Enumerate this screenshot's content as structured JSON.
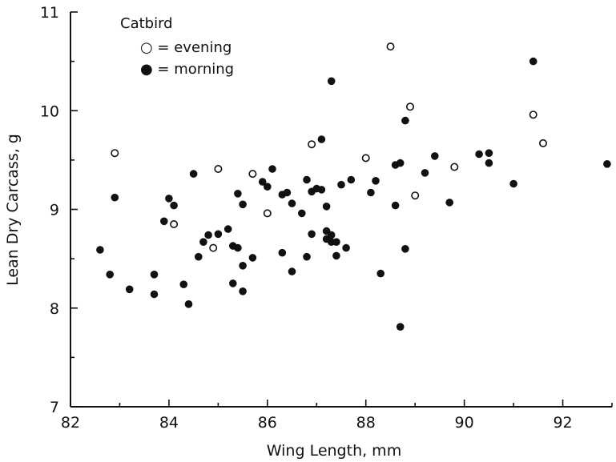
{
  "chart_data": {
    "type": "scatter",
    "title": "",
    "legend_title": "Catbird",
    "xlabel": "Wing Length, mm",
    "ylabel": "Lean Dry Carcass, g",
    "xlim": [
      82,
      93
    ],
    "ylim": [
      7,
      11
    ],
    "xticks": [
      82,
      84,
      86,
      88,
      90,
      92
    ],
    "yticks": [
      7,
      8,
      9,
      10,
      11
    ],
    "legend_placement": "top-left",
    "series": [
      {
        "name": "evening",
        "legend_label": "○ = evening",
        "marker": "open-circle",
        "points": [
          [
            82.9,
            9.57
          ],
          [
            84.1,
            8.85
          ],
          [
            84.9,
            8.61
          ],
          [
            85.0,
            9.41
          ],
          [
            85.7,
            9.36
          ],
          [
            86.0,
            8.96
          ],
          [
            86.9,
            9.66
          ],
          [
            88.0,
            9.52
          ],
          [
            88.5,
            10.65
          ],
          [
            88.9,
            10.04
          ],
          [
            89.0,
            9.14
          ],
          [
            89.8,
            9.43
          ],
          [
            91.4,
            9.96
          ],
          [
            91.6,
            9.67
          ]
        ]
      },
      {
        "name": "morning",
        "legend_label": "● = morning",
        "marker": "filled-circle",
        "points": [
          [
            82.6,
            8.59
          ],
          [
            82.8,
            8.34
          ],
          [
            82.9,
            9.12
          ],
          [
            83.2,
            8.19
          ],
          [
            83.7,
            8.14
          ],
          [
            83.7,
            8.34
          ],
          [
            83.9,
            8.88
          ],
          [
            84.0,
            9.11
          ],
          [
            84.1,
            9.04
          ],
          [
            84.3,
            8.24
          ],
          [
            84.4,
            8.04
          ],
          [
            84.5,
            9.36
          ],
          [
            84.6,
            8.52
          ],
          [
            84.7,
            8.67
          ],
          [
            84.8,
            8.74
          ],
          [
            85.0,
            8.75
          ],
          [
            85.2,
            8.8
          ],
          [
            85.3,
            8.25
          ],
          [
            85.3,
            8.63
          ],
          [
            85.4,
            8.61
          ],
          [
            85.4,
            9.16
          ],
          [
            85.5,
            9.05
          ],
          [
            85.5,
            8.43
          ],
          [
            85.5,
            8.17
          ],
          [
            85.7,
            8.51
          ],
          [
            85.9,
            9.28
          ],
          [
            86.0,
            9.23
          ],
          [
            86.1,
            9.41
          ],
          [
            86.3,
            8.56
          ],
          [
            86.3,
            9.15
          ],
          [
            86.4,
            9.17
          ],
          [
            86.5,
            9.06
          ],
          [
            86.5,
            8.37
          ],
          [
            86.7,
            8.96
          ],
          [
            86.8,
            9.3
          ],
          [
            86.8,
            8.52
          ],
          [
            86.9,
            9.18
          ],
          [
            86.9,
            8.75
          ],
          [
            87.0,
            9.21
          ],
          [
            87.1,
            9.2
          ],
          [
            87.1,
            9.71
          ],
          [
            87.2,
            9.03
          ],
          [
            87.2,
            8.78
          ],
          [
            87.2,
            8.7
          ],
          [
            87.3,
            8.74
          ],
          [
            87.3,
            8.67
          ],
          [
            87.3,
            10.3
          ],
          [
            87.4,
            8.67
          ],
          [
            87.4,
            8.53
          ],
          [
            87.5,
            9.25
          ],
          [
            87.6,
            8.61
          ],
          [
            87.7,
            9.3
          ],
          [
            88.1,
            9.17
          ],
          [
            88.2,
            9.29
          ],
          [
            88.3,
            8.35
          ],
          [
            88.6,
            9.04
          ],
          [
            88.6,
            9.45
          ],
          [
            88.7,
            9.47
          ],
          [
            88.7,
            7.81
          ],
          [
            88.8,
            9.9
          ],
          [
            88.8,
            8.6
          ],
          [
            89.2,
            9.37
          ],
          [
            89.4,
            9.54
          ],
          [
            89.7,
            9.07
          ],
          [
            90.3,
            9.56
          ],
          [
            90.5,
            9.57
          ],
          [
            90.5,
            9.47
          ],
          [
            91.0,
            9.26
          ],
          [
            91.4,
            10.5
          ],
          [
            92.9,
            9.46
          ]
        ]
      }
    ]
  }
}
